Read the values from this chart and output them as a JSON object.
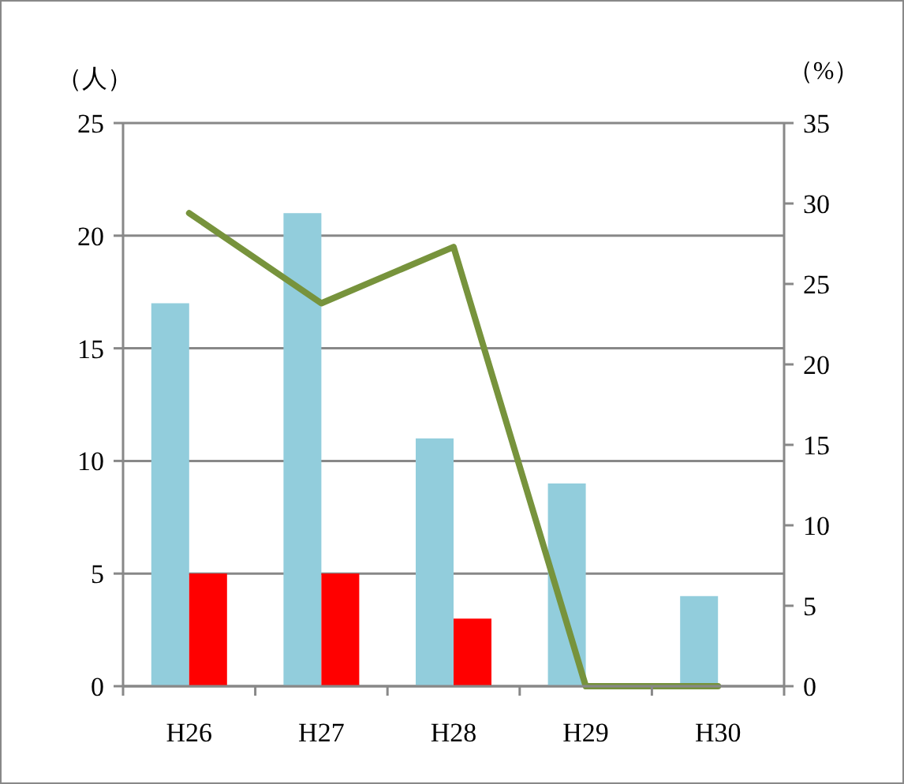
{
  "chart_data": {
    "type": "bar",
    "ylabel": "（人）",
    "y2label": "（%）",
    "categories": [
      "H26",
      "H27",
      "H28",
      "H29",
      "H30"
    ],
    "series": [
      {
        "color": "#92cddc",
        "values": [
          17,
          21,
          11,
          9,
          4
        ]
      },
      {
        "color": "#ff0000",
        "values": [
          5,
          5,
          3,
          0,
          0
        ]
      },
      {
        "type": "line",
        "axis": "y2",
        "color": "#77933c",
        "values": [
          29.4,
          23.8,
          27.3,
          0,
          0
        ]
      }
    ],
    "ylim": [
      0,
      25
    ],
    "yticks": [
      0,
      5,
      10,
      15,
      20,
      25
    ],
    "y2lim": [
      0,
      35
    ],
    "y2ticks": [
      0,
      5,
      10,
      15,
      20,
      25,
      30,
      35
    ],
    "grid": "y"
  }
}
